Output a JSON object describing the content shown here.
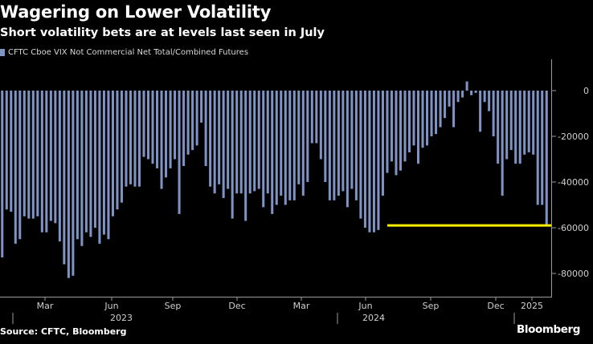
{
  "header": {
    "title": "Wagering on Lower Volatility",
    "subtitle": "Short volatility bets are at levels last seen in July"
  },
  "footer": {
    "source": "Source: CFTC, Bloomberg",
    "brand": "Bloomberg"
  },
  "colors": {
    "background": "#000000",
    "bar": "#7f93c4",
    "highlight_line": "#ffee00",
    "axis_text": "#cfcfcf"
  },
  "chart_data": {
    "type": "bar",
    "series": [
      {
        "name": "CFTC Cboe VIX Not Commercial Net Total/Combined Futures",
        "values": [
          -73000,
          -52000,
          -53000,
          -67000,
          -65000,
          -55000,
          -56000,
          -56000,
          -55000,
          -62000,
          -62000,
          -57000,
          -58000,
          -66000,
          -76000,
          -82000,
          -81000,
          -65000,
          -68000,
          -62000,
          -64000,
          -60000,
          -67000,
          -63000,
          -65000,
          -55000,
          -52000,
          -49000,
          -42000,
          -41000,
          -42000,
          -42000,
          -29000,
          -30000,
          -32000,
          -34000,
          -43000,
          -38000,
          -34000,
          -30000,
          -54000,
          -33000,
          -28000,
          -26000,
          -24000,
          -14000,
          -33000,
          -42000,
          -45000,
          -41000,
          -47000,
          -43000,
          -56000,
          -45000,
          -45000,
          -57000,
          -45000,
          -44000,
          -43000,
          -51000,
          -45000,
          -54000,
          -50000,
          -46000,
          -50000,
          -48000,
          -48000,
          -41000,
          -46000,
          -40000,
          -23000,
          -23000,
          -30000,
          -40000,
          -48000,
          -48000,
          -46000,
          -44000,
          -51000,
          -43000,
          -48000,
          -56000,
          -60000,
          -62000,
          -62000,
          -61000,
          -46000,
          -36000,
          -31000,
          -37000,
          -35000,
          -31000,
          -27000,
          -24000,
          -32000,
          -25000,
          -24000,
          -20000,
          -19000,
          -16000,
          -12000,
          -7000,
          -16000,
          -5000,
          -3000,
          4000,
          -2000,
          -1000,
          -18000,
          -5000,
          -9000,
          -20000,
          -32000,
          -46000,
          -30000,
          -26000,
          -32000,
          -32000,
          -28000,
          -27000,
          -28000,
          -50000,
          -50000,
          -59000
        ]
      }
    ],
    "x_tick_labels": [
      "Mar",
      "Jun",
      "Sep",
      "Dec",
      "Mar",
      "Jun",
      "Sep",
      "Dec",
      "2025"
    ],
    "x_group_labels": [
      "2023",
      "2024"
    ],
    "y_ticks": [
      0,
      -20000,
      -40000,
      -60000,
      -80000
    ],
    "y_tick_labels": [
      "0",
      "-20000",
      "-40000",
      "-60000",
      "-80000"
    ],
    "ylim": [
      -90000,
      14000
    ],
    "reference_line": {
      "value": -59000,
      "start_index": 87
    },
    "legend_position": "top-left",
    "grid": false
  }
}
